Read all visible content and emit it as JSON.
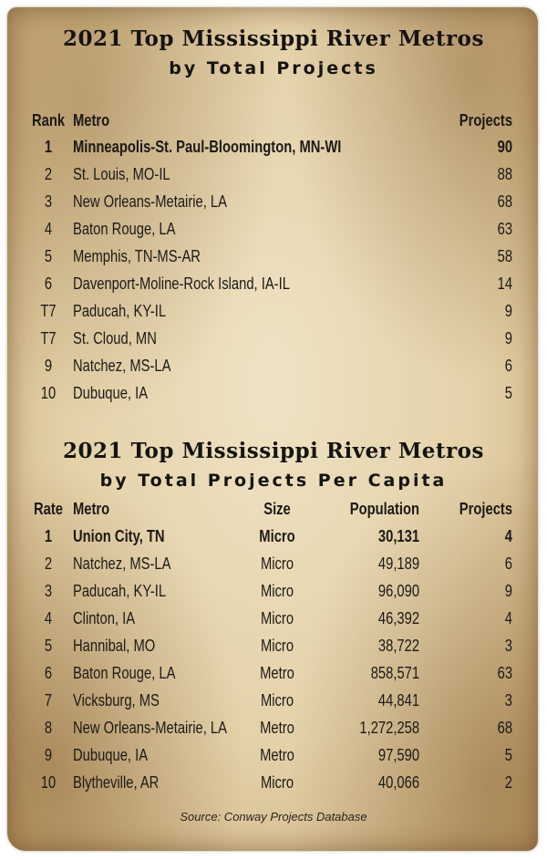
{
  "table1": {
    "title": "2021 Top Mississippi River Metros",
    "subtitle": "by Total Projects",
    "headers": {
      "rank": "Rank",
      "metro": "Metro",
      "projects": "Projects"
    },
    "rows": [
      {
        "rank": "1",
        "metro": "Minneapolis-St. Paul-Bloomington, MN-WI",
        "projects": "90"
      },
      {
        "rank": "2",
        "metro": "St. Louis, MO-IL",
        "projects": "88"
      },
      {
        "rank": "3",
        "metro": "New Orleans-Metairie, LA",
        "projects": "68"
      },
      {
        "rank": "4",
        "metro": "Baton Rouge, LA",
        "projects": "63"
      },
      {
        "rank": "5",
        "metro": "Memphis, TN-MS-AR",
        "projects": "58"
      },
      {
        "rank": "6",
        "metro": "Davenport-Moline-Rock Island, IA-IL",
        "projects": "14"
      },
      {
        "rank": "T7",
        "metro": "Paducah, KY-IL",
        "projects": "9"
      },
      {
        "rank": "T7",
        "metro": "St. Cloud, MN",
        "projects": "9"
      },
      {
        "rank": "9",
        "metro": "Natchez, MS-LA",
        "projects": "6"
      },
      {
        "rank": "10",
        "metro": "Dubuque, IA",
        "projects": "5"
      }
    ]
  },
  "table2": {
    "title": "2021 Top Mississippi River Metros",
    "subtitle": "by Total Projects Per Capita",
    "headers": {
      "rate": "Rate",
      "metro": "Metro",
      "size": "Size",
      "population": "Population",
      "projects": "Projects"
    },
    "rows": [
      {
        "rate": "1",
        "metro": "Union City, TN",
        "size": "Micro",
        "population": "30,131",
        "projects": "4"
      },
      {
        "rate": "2",
        "metro": "Natchez, MS-LA",
        "size": "Micro",
        "population": "49,189",
        "projects": "6"
      },
      {
        "rate": "3",
        "metro": "Paducah, KY-IL",
        "size": "Micro",
        "population": "96,090",
        "projects": "9"
      },
      {
        "rate": "4",
        "metro": "Clinton, IA",
        "size": "Micro",
        "population": "46,392",
        "projects": "4"
      },
      {
        "rate": "5",
        "metro": "Hannibal, MO",
        "size": "Micro",
        "population": "38,722",
        "projects": "3"
      },
      {
        "rate": "6",
        "metro": "Baton Rouge, LA",
        "size": "Metro",
        "population": "858,571",
        "projects": "63"
      },
      {
        "rate": "7",
        "metro": "Vicksburg, MS",
        "size": "Micro",
        "population": "44,841",
        "projects": "3"
      },
      {
        "rate": "8",
        "metro": "New Orleans-Metairie, LA",
        "size": "Metro",
        "population": "1,272,258",
        "projects": "68"
      },
      {
        "rate": "9",
        "metro": "Dubuque, IA",
        "size": "Metro",
        "population": "97,590",
        "projects": "5"
      },
      {
        "rate": "10",
        "metro": "Blytheville, AR",
        "size": "Micro",
        "population": "40,066",
        "projects": "2"
      }
    ]
  },
  "source": "Source: Conway Projects Database",
  "colors": {
    "ink": "#1c1a17",
    "paper": "#e3d1a8",
    "stain": "#caa977"
  }
}
